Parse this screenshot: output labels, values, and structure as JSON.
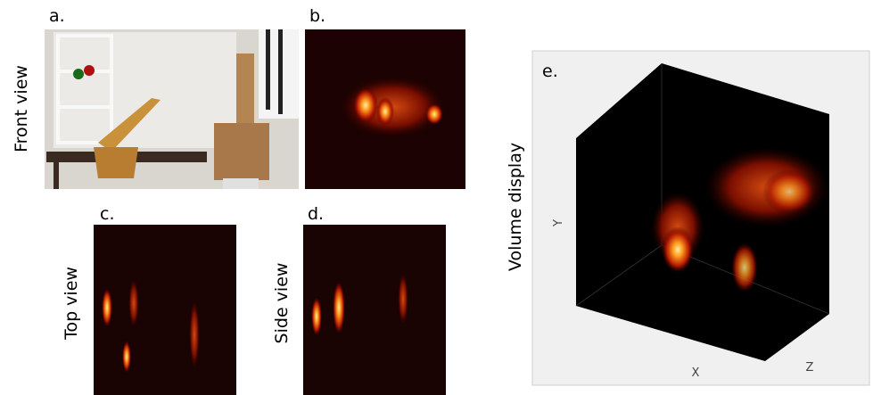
{
  "panels": {
    "a": {
      "label": "a.",
      "caption": "Front view"
    },
    "b": {
      "label": "b."
    },
    "c": {
      "label": "c.",
      "caption": "Top view"
    },
    "d": {
      "label": "d.",
      "caption": "Side view"
    },
    "e": {
      "label": "e.",
      "caption": "Volume display",
      "axes": {
        "x": "X",
        "y": "Y",
        "z": "Z"
      }
    }
  }
}
